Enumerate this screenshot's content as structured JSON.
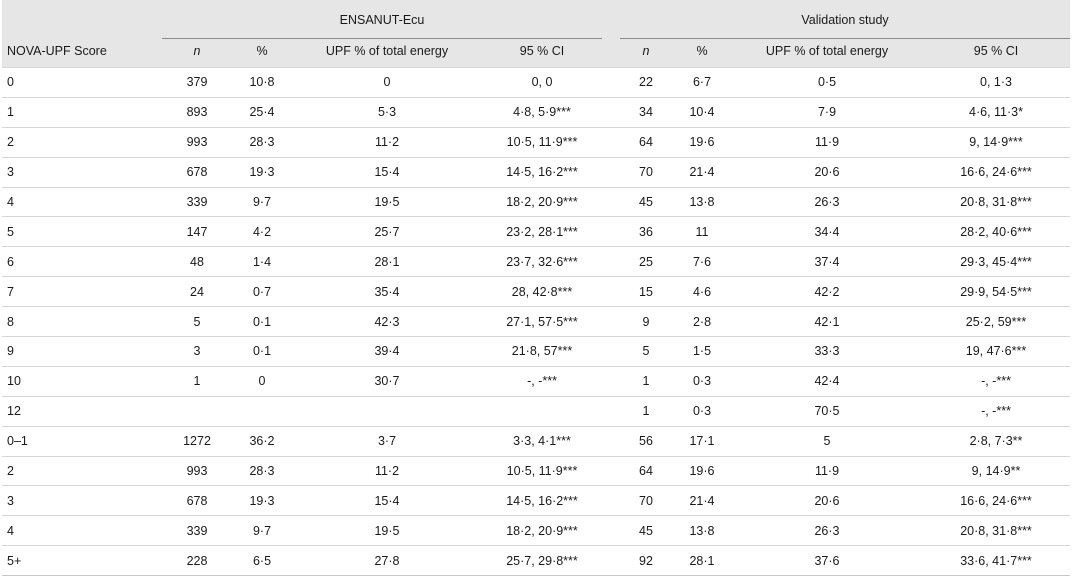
{
  "header": {
    "score_label": "NOVA-UPF Score",
    "group_ensanut": "ENSANUT-Ecu",
    "group_validation": "Validation study",
    "col_n": "n",
    "col_pct": "%",
    "col_upf": "UPF % of total energy",
    "col_ci": "95 % CI"
  },
  "rows": [
    {
      "score": "0",
      "e_n": "379",
      "e_pct": "10·8",
      "e_upf": "0",
      "e_ci": "0, 0",
      "v_n": "22",
      "v_pct": "6·7",
      "v_upf": "0·5",
      "v_ci": "0, 1·3"
    },
    {
      "score": "1",
      "e_n": "893",
      "e_pct": "25·4",
      "e_upf": "5·3",
      "e_ci": "4·8, 5·9***",
      "v_n": "34",
      "v_pct": "10·4",
      "v_upf": "7·9",
      "v_ci": "4·6, 11·3*"
    },
    {
      "score": "2",
      "e_n": "993",
      "e_pct": "28·3",
      "e_upf": "11·2",
      "e_ci": "10·5, 11·9***",
      "v_n": "64",
      "v_pct": "19·6",
      "v_upf": "11·9",
      "v_ci": "9, 14·9***"
    },
    {
      "score": "3",
      "e_n": "678",
      "e_pct": "19·3",
      "e_upf": "15·4",
      "e_ci": "14·5, 16·2***",
      "v_n": "70",
      "v_pct": "21·4",
      "v_upf": "20·6",
      "v_ci": "16·6, 24·6***"
    },
    {
      "score": "4",
      "e_n": "339",
      "e_pct": "9·7",
      "e_upf": "19·5",
      "e_ci": "18·2, 20·9***",
      "v_n": "45",
      "v_pct": "13·8",
      "v_upf": "26·3",
      "v_ci": "20·8, 31·8***"
    },
    {
      "score": "5",
      "e_n": "147",
      "e_pct": "4·2",
      "e_upf": "25·7",
      "e_ci": "23·2, 28·1***",
      "v_n": "36",
      "v_pct": "11",
      "v_upf": "34·4",
      "v_ci": "28·2, 40·6***"
    },
    {
      "score": "6",
      "e_n": "48",
      "e_pct": "1·4",
      "e_upf": "28·1",
      "e_ci": "23·7, 32·6***",
      "v_n": "25",
      "v_pct": "7·6",
      "v_upf": "37·4",
      "v_ci": "29·3, 45·4***"
    },
    {
      "score": "7",
      "e_n": "24",
      "e_pct": "0·7",
      "e_upf": "35·4",
      "e_ci": "28, 42·8***",
      "v_n": "15",
      "v_pct": "4·6",
      "v_upf": "42·2",
      "v_ci": "29·9, 54·5***"
    },
    {
      "score": "8",
      "e_n": "5",
      "e_pct": "0·1",
      "e_upf": "42·3",
      "e_ci": "27·1, 57·5***",
      "v_n": "9",
      "v_pct": "2·8",
      "v_upf": "42·1",
      "v_ci": "25·2, 59***"
    },
    {
      "score": "9",
      "e_n": "3",
      "e_pct": "0·1",
      "e_upf": "39·4",
      "e_ci": "21·8, 57***",
      "v_n": "5",
      "v_pct": "1·5",
      "v_upf": "33·3",
      "v_ci": "19, 47·6***"
    },
    {
      "score": "10",
      "e_n": "1",
      "e_pct": "0",
      "e_upf": "30·7",
      "e_ci": "-, -***",
      "v_n": "1",
      "v_pct": "0·3",
      "v_upf": "42·4",
      "v_ci": "-, -***"
    },
    {
      "score": "12",
      "e_n": "",
      "e_pct": "",
      "e_upf": "",
      "e_ci": "",
      "v_n": "1",
      "v_pct": "0·3",
      "v_upf": "70·5",
      "v_ci": "-, -***"
    },
    {
      "score": "0–1",
      "e_n": "1272",
      "e_pct": "36·2",
      "e_upf": "3·7",
      "e_ci": "3·3, 4·1***",
      "v_n": "56",
      "v_pct": "17·1",
      "v_upf": "5",
      "v_ci": "2·8, 7·3**"
    },
    {
      "score": "2",
      "e_n": "993",
      "e_pct": "28·3",
      "e_upf": "11·2",
      "e_ci": "10·5, 11·9***",
      "v_n": "64",
      "v_pct": "19·6",
      "v_upf": "11·9",
      "v_ci": "9, 14·9**"
    },
    {
      "score": "3",
      "e_n": "678",
      "e_pct": "19·3",
      "e_upf": "15·4",
      "e_ci": "14·5, 16·2***",
      "v_n": "70",
      "v_pct": "21·4",
      "v_upf": "20·6",
      "v_ci": "16·6, 24·6***"
    },
    {
      "score": "4",
      "e_n": "339",
      "e_pct": "9·7",
      "e_upf": "19·5",
      "e_ci": "18·2, 20·9***",
      "v_n": "45",
      "v_pct": "13·8",
      "v_upf": "26·3",
      "v_ci": "20·8, 31·8***"
    },
    {
      "score": "5+",
      "e_n": "228",
      "e_pct": "6·5",
      "e_upf": "27·8",
      "e_ci": "25·7, 29·8***",
      "v_n": "92",
      "v_pct": "28·1",
      "v_upf": "37·6",
      "v_ci": "33·6, 41·7***"
    }
  ]
}
